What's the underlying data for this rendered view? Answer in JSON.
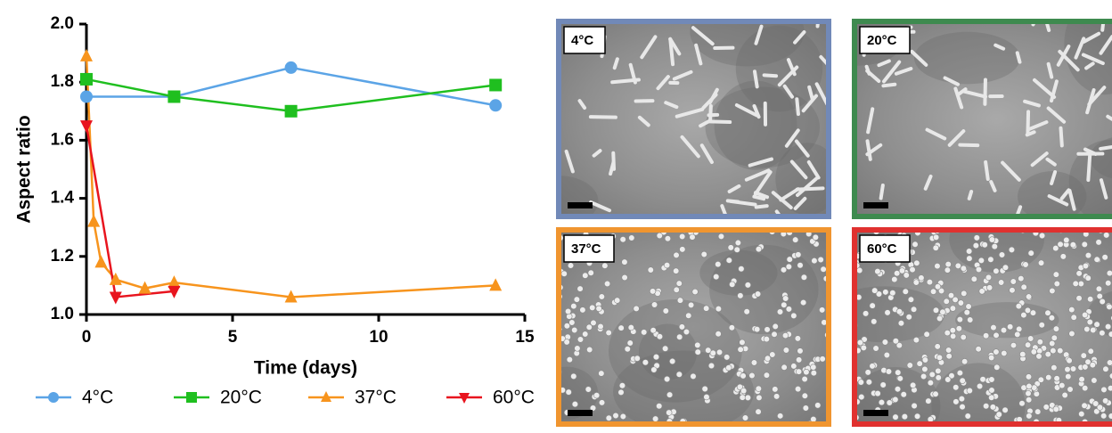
{
  "chart_data": {
    "type": "line",
    "xlabel": "Time (days)",
    "ylabel": "Aspect ratio",
    "xlim": [
      0,
      15
    ],
    "xticks": [
      0,
      5,
      10,
      15
    ],
    "ylim": [
      1,
      2
    ],
    "yticks": [
      {
        "value": 1,
        "label": "1.0"
      },
      1.2,
      1.4,
      1.6,
      1.8,
      {
        "value": 2,
        "label": "2.0"
      }
    ],
    "legend": "bottom",
    "series": [
      {
        "name": "4°C",
        "color": "#5ba4e6",
        "marker": "circle",
        "x": [
          0,
          3,
          7,
          14
        ],
        "values": [
          1.75,
          1.75,
          1.85,
          1.72
        ]
      },
      {
        "name": "20°C",
        "color": "#1fbf1f",
        "marker": "square",
        "x": [
          0,
          3,
          7,
          14
        ],
        "values": [
          1.81,
          1.75,
          1.7,
          1.79
        ]
      },
      {
        "name": "37°C",
        "color": "#f7941d",
        "marker": "triangle-up",
        "x": [
          0,
          0.25,
          0.5,
          1,
          2,
          3,
          7,
          14
        ],
        "values": [
          1.89,
          1.32,
          1.18,
          1.12,
          1.09,
          1.11,
          1.06,
          1.1
        ]
      },
      {
        "name": "60°C",
        "color": "#e8141e",
        "marker": "triangle-down",
        "x": [
          0,
          1,
          3
        ],
        "values": [
          1.65,
          1.06,
          1.08
        ]
      }
    ]
  },
  "panels": [
    {
      "label": "4°C",
      "color": "#7189b8",
      "shape": "rods"
    },
    {
      "label": "20°C",
      "color": "#3e8a4f",
      "shape": "rods"
    },
    {
      "label": "37°C",
      "color": "#f0952f",
      "shape": "spheres"
    },
    {
      "label": "60°C",
      "color": "#e0312f",
      "shape": "spheres"
    }
  ]
}
